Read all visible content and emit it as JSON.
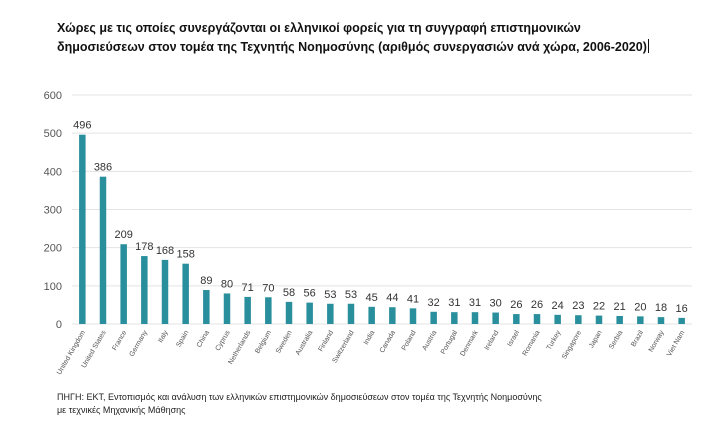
{
  "title": {
    "line1": "Χώρες με τις οποίες συνεργάζονται οι ελληνικοί φορείς για τη συγγραφή επιστημονικών",
    "line2": "δημοσιεύσεων στον τομέα της Τεχνητής Νοημοσύνης (αριθμός συνεργασιών ανά χώρα, 2006-2020)"
  },
  "source": {
    "line1": "ΠΗΓΗ: ΕΚΤ, Εντοπισμός και ανάλυση των ελληνικών επιστημονικών δημοσιεύσεων στον τομέα της Τεχνητής Νοημοσύνης",
    "line2": "με τεχνικές Μηχανικής Μάθησης"
  },
  "colors": {
    "bar": "#2a8f9c",
    "grid": "#e3e3e3",
    "axis_text": "#555555",
    "label_text": "#333333"
  },
  "chart_data": {
    "type": "bar",
    "title": "Χώρες με τις οποίες συνεργάζονται οι ελληνικοί φορείς για τη συγγραφή επιστημονικών δημοσιεύσεων στον τομέα της Τεχνητής Νοημοσύνης (αριθμός συνεργασιών ανά χώρα, 2006-2020)",
    "xlabel": "",
    "ylabel": "",
    "ylim": [
      0,
      600
    ],
    "yticks": [
      0,
      100,
      200,
      300,
      400,
      500,
      600
    ],
    "grid": true,
    "legend": "none",
    "categories": [
      "United Kingdom",
      "United States",
      "France",
      "Germany",
      "Italy",
      "Spain",
      "China",
      "Cyprus",
      "Netherlands",
      "Belgium",
      "Sweden",
      "Australia",
      "Finland",
      "Switzerland",
      "India",
      "Canada",
      "Poland",
      "Austria",
      "Portugal",
      "Denmark",
      "Ireland",
      "Israel",
      "Romania",
      "Turkey",
      "Singapore",
      "Japan",
      "Serbia",
      "Brazil",
      "Norway",
      "Viet Nam"
    ],
    "values": [
      496,
      386,
      209,
      178,
      168,
      158,
      89,
      80,
      71,
      70,
      58,
      56,
      53,
      53,
      45,
      44,
      41,
      32,
      31,
      31,
      30,
      26,
      26,
      24,
      23,
      22,
      21,
      20,
      18,
      16
    ]
  }
}
